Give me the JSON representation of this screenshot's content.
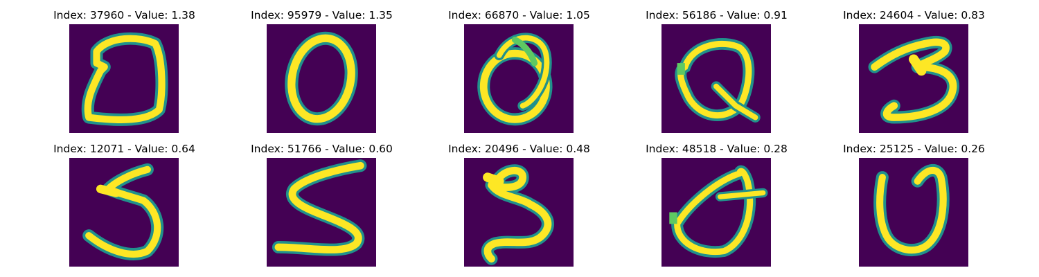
{
  "colors": {
    "background": "#440154",
    "stroke_edge": "#21918c",
    "stroke_mid": "#5ec962",
    "stroke_core": "#fde725"
  },
  "panels": [
    {
      "title": "Index: 37960 - Value: 1.38",
      "glyph": "D"
    },
    {
      "title": "Index: 95979 - Value: 1.35",
      "glyph": "O"
    },
    {
      "title": "Index: 66870 - Value: 1.05",
      "glyph": "o-loop"
    },
    {
      "title": "Index: 56186 - Value: 0.91",
      "glyph": "Q"
    },
    {
      "title": "Index: 24604 - Value: 0.83",
      "glyph": "3"
    },
    {
      "title": "Index: 12071 - Value: 0.64",
      "glyph": "S"
    },
    {
      "title": "Index: 51766 - Value: 0.60",
      "glyph": "S"
    },
    {
      "title": "Index: 20496 - Value: 0.48",
      "glyph": "2-loop"
    },
    {
      "title": "Index: 48518 - Value: 0.28",
      "glyph": "theta"
    },
    {
      "title": "Index: 25125 - Value: 0.26",
      "glyph": "U"
    }
  ]
}
